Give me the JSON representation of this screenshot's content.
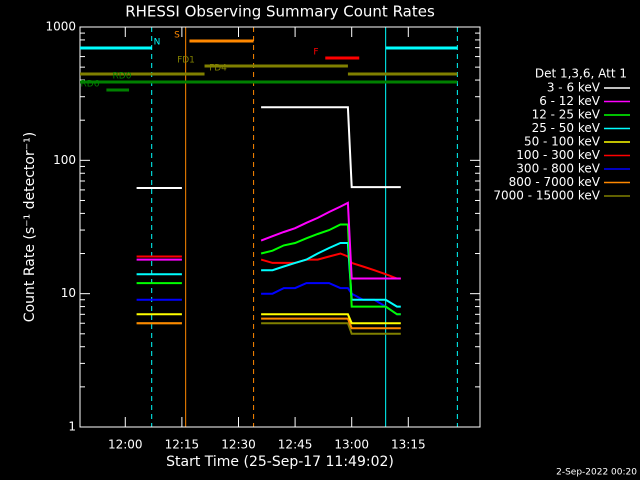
{
  "chart_data": {
    "type": "line",
    "title": "RHESSI Observing Summary Count Rates",
    "xlabel": "Start Time (25-Sep-17 11:49:02)",
    "ylabel": "Count Rate (s⁻¹ detector⁻¹)",
    "footer": "2-Sep-2022 00:20",
    "legend_title": "Det 1,3,6, Att 1",
    "log_y": true,
    "xlim": [
      "11:48",
      "13:34"
    ],
    "xticks": [
      "12:00",
      "12:15",
      "12:30",
      "12:45",
      "13:00",
      "13:15"
    ],
    "ylim": [
      1,
      1000
    ],
    "yticks": [
      1,
      10,
      100,
      1000
    ],
    "x": [
      "12:03",
      "12:05",
      "12:07",
      "12:09",
      "12:11",
      "12:13",
      "12:15",
      "12:25",
      "12:36",
      "12:39",
      "12:42",
      "12:45",
      "12:48",
      "12:51",
      "12:54",
      "12:57",
      "12:59",
      "13:00",
      "13:03",
      "13:06",
      "13:09",
      "13:12",
      "13:13"
    ],
    "series": [
      {
        "name": "3 - 6 keV",
        "color": "#ffffff",
        "values": [
          62,
          62,
          62,
          62,
          62,
          62,
          62,
          null,
          250,
          250,
          250,
          250,
          250,
          250,
          250,
          250,
          250,
          63,
          63,
          63,
          63,
          63,
          63
        ]
      },
      {
        "name": "6 - 12 keV",
        "color": "#ff00ff",
        "values": [
          18,
          18,
          18,
          18,
          18,
          18,
          18,
          null,
          25,
          27,
          29,
          31,
          34,
          37,
          41,
          45,
          48,
          13,
          13,
          13,
          13,
          13,
          13
        ]
      },
      {
        "name": "12 - 25 keV",
        "color": "#00ff00",
        "values": [
          12,
          12,
          12,
          12,
          12,
          12,
          12,
          null,
          20,
          21,
          23,
          24,
          26,
          28,
          30,
          33,
          33,
          8,
          8,
          8,
          8,
          7,
          7
        ]
      },
      {
        "name": "25 - 50 keV",
        "color": "#00ffff",
        "values": [
          14,
          14,
          14,
          14,
          14,
          14,
          14,
          null,
          15,
          15,
          16,
          17,
          18,
          20,
          22,
          24,
          24,
          9,
          9,
          9,
          9,
          8,
          8
        ]
      },
      {
        "name": "50 - 100 keV",
        "color": "#ffff00",
        "values": [
          7,
          7,
          7,
          7,
          7,
          7,
          7,
          null,
          7,
          7,
          7,
          7,
          7,
          7,
          7,
          7,
          7,
          6,
          6,
          6,
          6,
          6,
          6
        ]
      },
      {
        "name": "100 - 300 keV",
        "color": "#ff0000",
        "values": [
          19,
          19,
          19,
          19,
          19,
          19,
          19,
          null,
          18,
          17,
          17,
          17,
          18,
          18,
          19,
          20,
          19,
          17,
          16,
          15,
          14,
          13,
          13
        ]
      },
      {
        "name": "300 - 800 keV",
        "color": "#0000ff",
        "values": [
          9,
          9,
          9,
          9,
          9,
          9,
          9,
          null,
          10,
          10,
          11,
          11,
          12,
          12,
          12,
          11,
          11,
          10,
          9,
          9,
          8,
          7,
          7
        ]
      },
      {
        "name": "800 - 7000 keV",
        "color": "#ff8800",
        "values": [
          6,
          6,
          6,
          6,
          6,
          6,
          6,
          null,
          6.5,
          6.5,
          6.5,
          6.5,
          6.5,
          6.5,
          6.5,
          6.5,
          6.5,
          5.5,
          5.5,
          5.5,
          5.5,
          5.5,
          5.5
        ]
      },
      {
        "name": "7000 - 15000 keV",
        "color": "#808000",
        "values": [
          6,
          6,
          6,
          6,
          6,
          6,
          6,
          null,
          6,
          6,
          6,
          6,
          6,
          6,
          6,
          6,
          6,
          5,
          5,
          5,
          5,
          5,
          5
        ]
      }
    ],
    "flags": [
      {
        "label": "N",
        "color": "#00ffff",
        "spans": [
          [
            "11:48",
            "12:07"
          ],
          [
            "13:09",
            "13:28"
          ]
        ]
      },
      {
        "label": "S",
        "color": "#ff8800",
        "spans": [
          [
            "12:17",
            "12:34"
          ]
        ]
      },
      {
        "label": "F",
        "color": "#ff0000",
        "spans": [
          [
            "12:53",
            "13:02"
          ]
        ]
      },
      {
        "label": "FD1",
        "color": "#808000",
        "spans": [
          [
            "12:21",
            "12:59"
          ]
        ]
      },
      {
        "label": "FD4",
        "color": "#808000",
        "spans": [
          [
            "11:48",
            "12:21"
          ],
          [
            "12:59",
            "13:28"
          ]
        ]
      },
      {
        "label": "RD0",
        "color": "#008000",
        "spans": [
          [
            "11:48",
            "13:28"
          ]
        ]
      },
      {
        "label": "RD6",
        "color": "#008000",
        "spans": [
          [
            "11:55",
            "12:01"
          ]
        ]
      }
    ],
    "markers": [
      {
        "time": "11:48",
        "color": "#00ffff",
        "style": "solid"
      },
      {
        "time": "12:07",
        "color": "#00ffff",
        "style": "dashed"
      },
      {
        "time": "12:16",
        "color": "#ff8800",
        "style": "solid"
      },
      {
        "time": "12:34",
        "color": "#ff8800",
        "style": "dashed"
      },
      {
        "time": "13:09",
        "color": "#00ffff",
        "style": "solid"
      },
      {
        "time": "13:28",
        "color": "#00ffff",
        "style": "dashed"
      }
    ]
  }
}
